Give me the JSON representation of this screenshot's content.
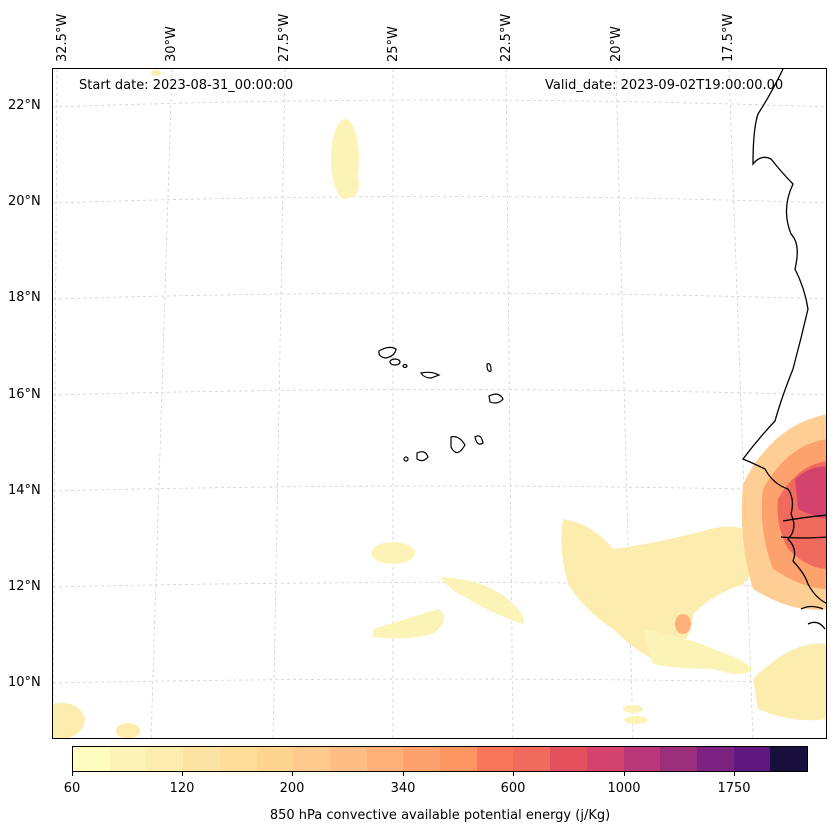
{
  "header": {
    "start_date": "Start date: 2023-08-31_00:00:00",
    "valid_date": "Valid_date: 2023-09-02T19:00:00.00"
  },
  "longitude_labels": [
    "32.5°W",
    "30°W",
    "27.5°W",
    "25°W",
    "22.5°W",
    "20°W",
    "17.5°W"
  ],
  "latitude_labels": [
    "22°N",
    "20°N",
    "18°N",
    "16°N",
    "14°N",
    "12°N",
    "10°N"
  ],
  "colorbar": {
    "title": "850 hPa convective available potential energy (j/Kg)",
    "tick_labels": [
      "60",
      "120",
      "200",
      "340",
      "600",
      "1000",
      "1750"
    ],
    "colors": [
      "#fcfdbf",
      "#fcf4b6",
      "#fcecad",
      "#fce3a3",
      "#fedc9a",
      "#fed590",
      "#feca8d",
      "#febd82",
      "#feb078",
      "#fea26d",
      "#fe9662",
      "#f8765c",
      "#f06a5d",
      "#e3515d",
      "#d4436e",
      "#b73779",
      "#9b2e7b",
      "#7c2382",
      "#5f187f",
      "#180f3d"
    ]
  },
  "map_features": {
    "coastline_color": "#000000",
    "gridline_color": "#cccccc",
    "regions": [
      "Cape Verde Islands",
      "West African coast (Senegal, Gambia, Guinea-Bissau)"
    ]
  }
}
